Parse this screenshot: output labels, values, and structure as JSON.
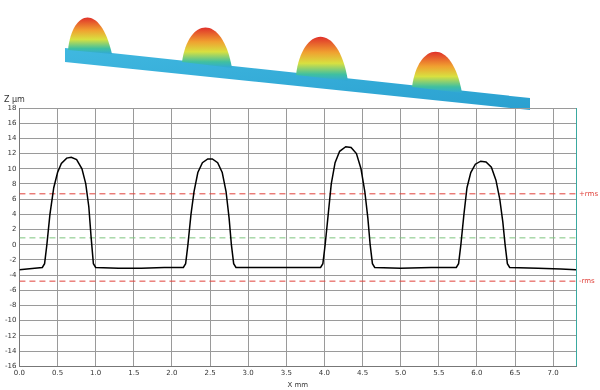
{
  "chart_data": {
    "type": "line",
    "x_label": "X mm",
    "y_label": "Z µm",
    "xlim": [
      0,
      7.3
    ],
    "ylim": [
      -16,
      18
    ],
    "xticks": [
      {
        "value": 0,
        "label": "0.0"
      },
      {
        "value": 0.5,
        "label": "0.5"
      },
      {
        "value": 1,
        "label": "1.0"
      },
      {
        "value": 1.5,
        "label": "1.5"
      },
      {
        "value": 2,
        "label": "2.0"
      },
      {
        "value": 2.5,
        "label": "2.5"
      },
      {
        "value": 3,
        "label": "3.0"
      },
      {
        "value": 3.5,
        "label": "3.5"
      },
      {
        "value": 4,
        "label": "4.0"
      },
      {
        "value": 4.5,
        "label": "4.5"
      },
      {
        "value": 5,
        "label": "5.0"
      },
      {
        "value": 5.5,
        "label": "5.5"
      },
      {
        "value": 6,
        "label": "6.0"
      },
      {
        "value": 6.5,
        "label": "6.5"
      },
      {
        "value": 7,
        "label": "7.0"
      }
    ],
    "yticks": [
      -16,
      -14,
      -12,
      -10,
      -8,
      -6,
      -4,
      -2,
      0,
      2,
      4,
      6,
      8,
      10,
      12,
      14,
      16,
      18
    ],
    "grid": true,
    "series": [
      {
        "color": "#000000",
        "x": [
          0,
          0.1,
          0.2,
          0.3,
          0.33,
          0.36,
          0.4,
          0.45,
          0.5,
          0.55,
          0.62,
          0.68,
          0.75,
          0.82,
          0.87,
          0.91,
          0.94,
          0.97,
          1.0,
          1.3,
          1.6,
          1.9,
          2.15,
          2.18,
          2.21,
          2.25,
          2.29,
          2.34,
          2.4,
          2.47,
          2.53,
          2.6,
          2.66,
          2.71,
          2.75,
          2.78,
          2.81,
          2.84,
          3.2,
          3.6,
          3.95,
          3.98,
          4.01,
          4.05,
          4.09,
          4.14,
          4.2,
          4.28,
          4.35,
          4.42,
          4.48,
          4.53,
          4.57,
          4.6,
          4.63,
          4.66,
          5.0,
          5.4,
          5.73,
          5.76,
          5.79,
          5.83,
          5.87,
          5.92,
          5.98,
          6.05,
          6.12,
          6.19,
          6.25,
          6.3,
          6.34,
          6.37,
          6.4,
          6.43,
          6.8,
          7.1,
          7.3
        ],
        "values": [
          -3.3,
          -3.2,
          -3.1,
          -3.0,
          -2.5,
          0,
          4,
          7.5,
          9.5,
          10.7,
          11.4,
          11.5,
          11.2,
          10,
          8,
          5,
          1,
          -2.5,
          -3.0,
          -3.1,
          -3.1,
          -3.0,
          -3.0,
          -2.5,
          0,
          4,
          7,
          9.5,
          10.8,
          11.3,
          11.3,
          10.8,
          9.5,
          7,
          3.5,
          0,
          -2.5,
          -3.0,
          -3.0,
          -3.0,
          -3.0,
          -2.5,
          0,
          4,
          8,
          10.8,
          12.3,
          12.9,
          12.8,
          12,
          10,
          7,
          3.5,
          0,
          -2.5,
          -3.0,
          -3.1,
          -3.0,
          -3.0,
          -2.5,
          0,
          4,
          7.5,
          9.5,
          10.6,
          11.0,
          10.9,
          10.2,
          8.5,
          6,
          3,
          0,
          -2.5,
          -3.0,
          -3.1,
          -3.2,
          -3.3
        ]
      },
      {
        "name": "+rms",
        "color": "#e0413a",
        "line_style": "dashed",
        "x": [
          0,
          7.3
        ],
        "values": [
          6.7,
          6.7
        ]
      },
      {
        "color": "#7cc47c",
        "line_style": "dashed",
        "x": [
          0,
          7.3
        ],
        "values": [
          0.9,
          0.9
        ]
      },
      {
        "name": "-rms",
        "color": "#e0413a",
        "line_style": "dashed",
        "x": [
          0,
          7.3
        ],
        "values": [
          -4.8,
          -4.8
        ]
      }
    ]
  }
}
